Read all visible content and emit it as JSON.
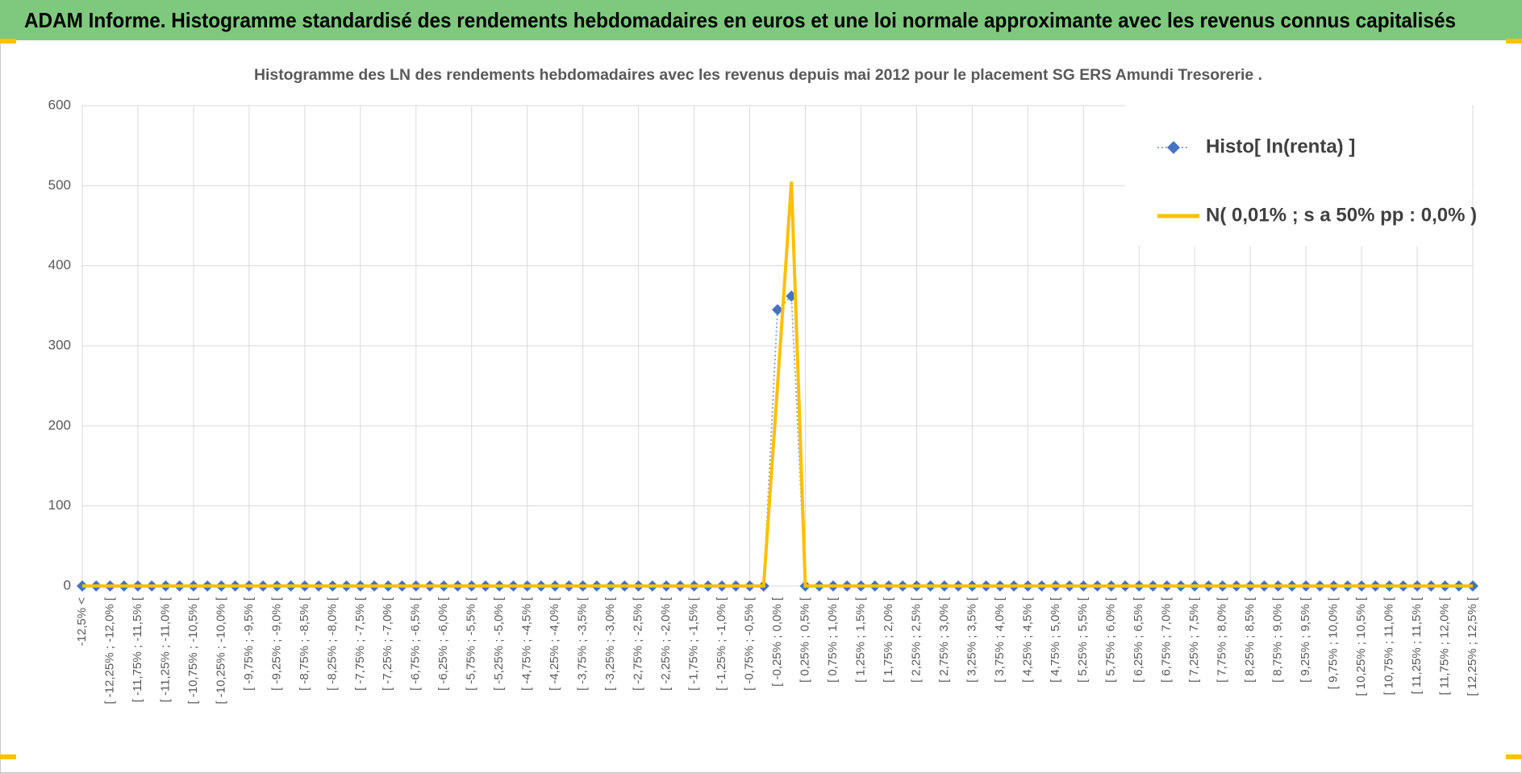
{
  "header": {
    "title": "ADAM Informe. Histogramme standardisé des rendements hebdomadaires en euros et une loi normale approximante avec les revenus connus capitalisés"
  },
  "chart_data": {
    "type": "line",
    "title": "Histogramme des LN des rendements hebdomadaires avec les revenus depuis mai 2012 pour le placement SG ERS Amundi Tresorerie  .",
    "categories": [
      "-12,5% <",
      null,
      "[ -12,25% ; -12,0% [",
      null,
      "[ -11,75% ; -11,5% [",
      null,
      "[ -11,25% ; -11,0% [",
      null,
      "[ -10,75% ; -10,5% [",
      null,
      "[ -10,25% ; -10,0% [",
      null,
      "[ -9,75% ; -9,5% [",
      null,
      "[ -9,25% ; -9,0% [",
      null,
      "[ -8,75% ; -8,5% [",
      null,
      "[ -8,25% ; -8,0% [",
      null,
      "[ -7,75% ; -7,5% [",
      null,
      "[ -7,25% ; -7,0% [",
      null,
      "[ -6,75% ; -6,5% [",
      null,
      "[ -6,25% ; -6,0% [",
      null,
      "[ -5,75% ; -5,5% [",
      null,
      "[ -5,25% ; -5,0% [",
      null,
      "[ -4,75% ; -4,5% [",
      null,
      "[ -4,25% ; -4,0% [",
      null,
      "[ -3,75% ; -3,5% [",
      null,
      "[ -3,25% ; -3,0% [",
      null,
      "[ -2,75% ; -2,5% [",
      null,
      "[ -2,25% ; -2,0% [",
      null,
      "[ -1,75% ; -1,5% [",
      null,
      "[ -1,25% ; -1,0% [",
      null,
      "[ -0,75% ; -0,5% [",
      null,
      "[ -0,25% ; 0,0% [",
      null,
      "[ 0,25% ; 0,5% [",
      null,
      "[ 0,75% ; 1,0% [",
      null,
      "[ 1,25% ; 1,5% [",
      null,
      "[ 1,75% ; 2,0% [",
      null,
      "[ 2,25% ; 2,5% [",
      null,
      "[ 2,75% ; 3,0% [",
      null,
      "[ 3,25% ; 3,5% [",
      null,
      "[ 3,75% ; 4,0% [",
      null,
      "[ 4,25% ; 4,5% [",
      null,
      "[ 4,75% ; 5,0% [",
      null,
      "[ 5,25% ; 5,5% [",
      null,
      "[ 5,75% ; 6,0% [",
      null,
      "[ 6,25% ; 6,5% [",
      null,
      "[ 6,75% ; 7,0% [",
      null,
      "[ 7,25% ; 7,5% [",
      null,
      "[ 7,75% ; 8,0% [",
      null,
      "[ 8,25% ; 8,5% [",
      null,
      "[ 8,75% ; 9,0% [",
      null,
      "[ 9,25% ; 9,5% [",
      null,
      "[ 9,75% ; 10,0% [",
      null,
      "[ 10,25% ; 10,5% [",
      null,
      "[ 10,75% ; 11,0% [",
      null,
      "[ 11,25% ; 11,5% [",
      null,
      "[ 11,75% ; 12,0% [",
      null,
      "[ 12,25% ; 12,5% ["
    ],
    "series": [
      {
        "name": "Histo[ ln(renta) ]",
        "color": "#4472c4",
        "values": [
          0,
          0,
          0,
          0,
          0,
          0,
          0,
          0,
          0,
          0,
          0,
          0,
          0,
          0,
          0,
          0,
          0,
          0,
          0,
          0,
          0,
          0,
          0,
          0,
          0,
          0,
          0,
          0,
          0,
          0,
          0,
          0,
          0,
          0,
          0,
          0,
          0,
          0,
          0,
          0,
          0,
          0,
          0,
          0,
          0,
          0,
          0,
          0,
          0,
          0,
          345,
          362,
          0,
          0,
          0,
          0,
          0,
          0,
          0,
          0,
          0,
          0,
          0,
          0,
          0,
          0,
          0,
          0,
          0,
          0,
          0,
          0,
          0,
          0,
          0,
          0,
          0,
          0,
          0,
          0,
          0,
          0,
          0,
          0,
          0,
          0,
          0,
          0,
          0,
          0,
          0,
          0,
          0,
          0,
          0,
          0,
          0,
          0,
          0,
          0,
          0
        ]
      },
      {
        "name": "N( 0,01% ; s a 50% pp : 0,0% )",
        "color": "#ffc000",
        "values": [
          0,
          0,
          0,
          0,
          0,
          0,
          0,
          0,
          0,
          0,
          0,
          0,
          0,
          0,
          0,
          0,
          0,
          0,
          0,
          0,
          0,
          0,
          0,
          0,
          0,
          0,
          0,
          0,
          0,
          0,
          0,
          0,
          0,
          0,
          0,
          0,
          0,
          0,
          0,
          0,
          0,
          0,
          0,
          0,
          0,
          0,
          0,
          0,
          0,
          0,
          250,
          505,
          0,
          0,
          0,
          0,
          0,
          0,
          0,
          0,
          0,
          0,
          0,
          0,
          0,
          0,
          0,
          0,
          0,
          0,
          0,
          0,
          0,
          0,
          0,
          0,
          0,
          0,
          0,
          0,
          0,
          0,
          0,
          0,
          0,
          0,
          0,
          0,
          0,
          0,
          0,
          0,
          0,
          0,
          0,
          0,
          0,
          0,
          0,
          0,
          0
        ]
      }
    ],
    "ylim": [
      0,
      600
    ],
    "yticks": [
      0,
      100,
      200,
      300,
      400,
      500,
      600
    ],
    "grid": true,
    "legend": "top-right"
  }
}
